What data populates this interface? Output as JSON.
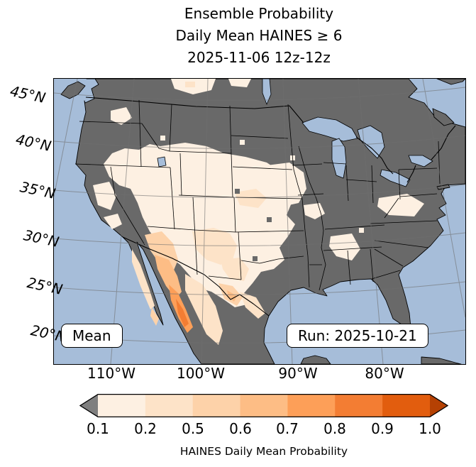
{
  "title": {
    "line1": "Ensemble Probability",
    "line2": "Daily Mean HAINES ≥ 6",
    "line3": "2025-11-06 12z-12z"
  },
  "map": {
    "lat_labels": [
      "45°N",
      "40°N",
      "35°N",
      "30°N",
      "25°N",
      "20°N"
    ],
    "lon_labels": [
      "110°W",
      "100°W",
      "90°W",
      "80°W"
    ],
    "mean_box_label": "Mean",
    "run_box_label": "Run: 2025-10-21",
    "colors": {
      "ocean": "#a6bdd9",
      "land": "#696969",
      "lakes": "#a6bdd9",
      "gridline": "#6f6f6f",
      "coastline": "#000000"
    }
  },
  "colorbar": {
    "tick_labels": [
      "0.1",
      "0.2",
      "0.5",
      "0.6",
      "0.7",
      "0.8",
      "0.9",
      "1.0"
    ],
    "segment_colors": [
      "#fdf0e2",
      "#fde3c8",
      "#fdd2a9",
      "#fdbd85",
      "#fd9f58",
      "#f37d33",
      "#e25d0e"
    ],
    "under_color": "#7f7f7f",
    "over_color": "#b54103",
    "label": "HAINES Daily Mean Probability"
  }
}
